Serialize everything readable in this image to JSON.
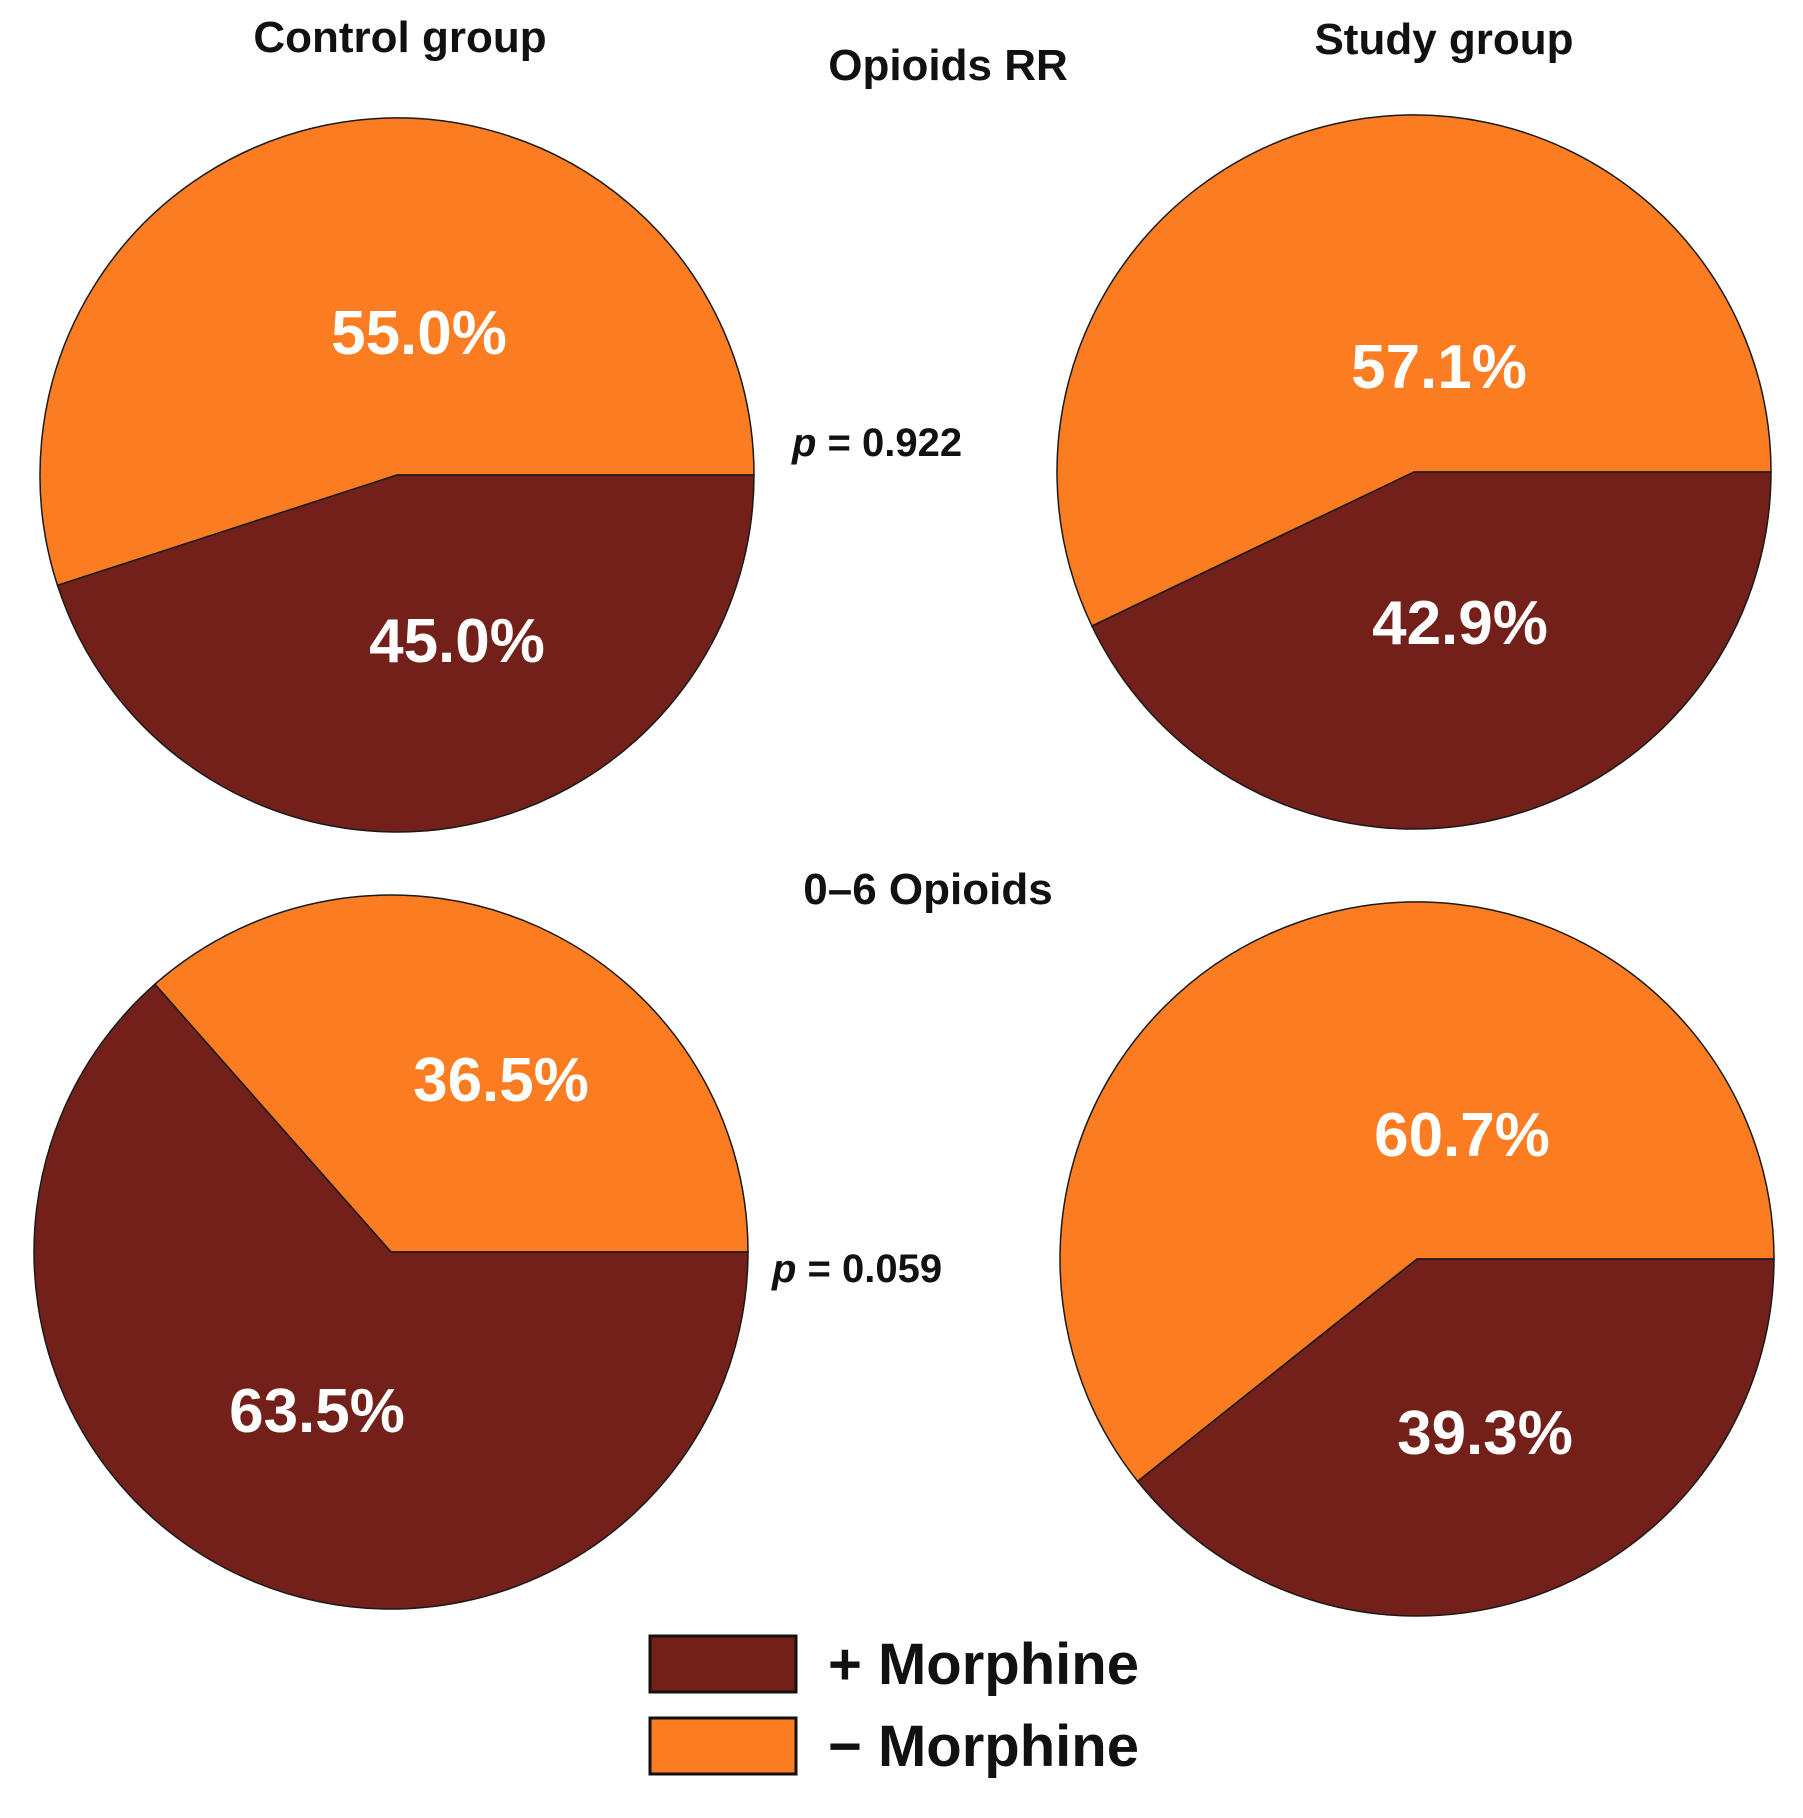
{
  "group_titles": {
    "control": "Control group",
    "study": "Study group"
  },
  "colors": {
    "with_morphine": "#722019",
    "without_morphine": "#FC7C22"
  },
  "legend": [
    {
      "key": "with_morphine",
      "label": "+ Morphine"
    },
    {
      "key": "without_morphine",
      "label": "− Morphine"
    }
  ],
  "chart_data": [
    {
      "type": "pie",
      "title": "Opioids RR",
      "p_symbol": "p",
      "p_text": " = 0.922",
      "pies": [
        {
          "group": "Control group",
          "slices": [
            {
              "series": "− Morphine",
              "value": 55.0,
              "label": "55.0%"
            },
            {
              "series": "+ Morphine",
              "value": 45.0,
              "label": "45.0%"
            }
          ]
        },
        {
          "group": "Study group",
          "slices": [
            {
              "series": "− Morphine",
              "value": 57.1,
              "label": "57.1%"
            },
            {
              "series": "+ Morphine",
              "value": 42.9,
              "label": "42.9%"
            }
          ]
        }
      ]
    },
    {
      "type": "pie",
      "title": "0–6 Opioids",
      "p_symbol": "p",
      "p_text": " = 0.059",
      "pies": [
        {
          "group": "Control group",
          "slices": [
            {
              "series": "− Morphine",
              "value": 36.5,
              "label": "36.5%"
            },
            {
              "series": "+ Morphine",
              "value": 63.5,
              "label": "63.5%"
            }
          ]
        },
        {
          "group": "Study group",
          "slices": [
            {
              "series": "− Morphine",
              "value": 60.7,
              "label": "60.7%"
            },
            {
              "series": "+ Morphine",
              "value": 39.3,
              "label": "39.3%"
            }
          ]
        }
      ]
    }
  ]
}
